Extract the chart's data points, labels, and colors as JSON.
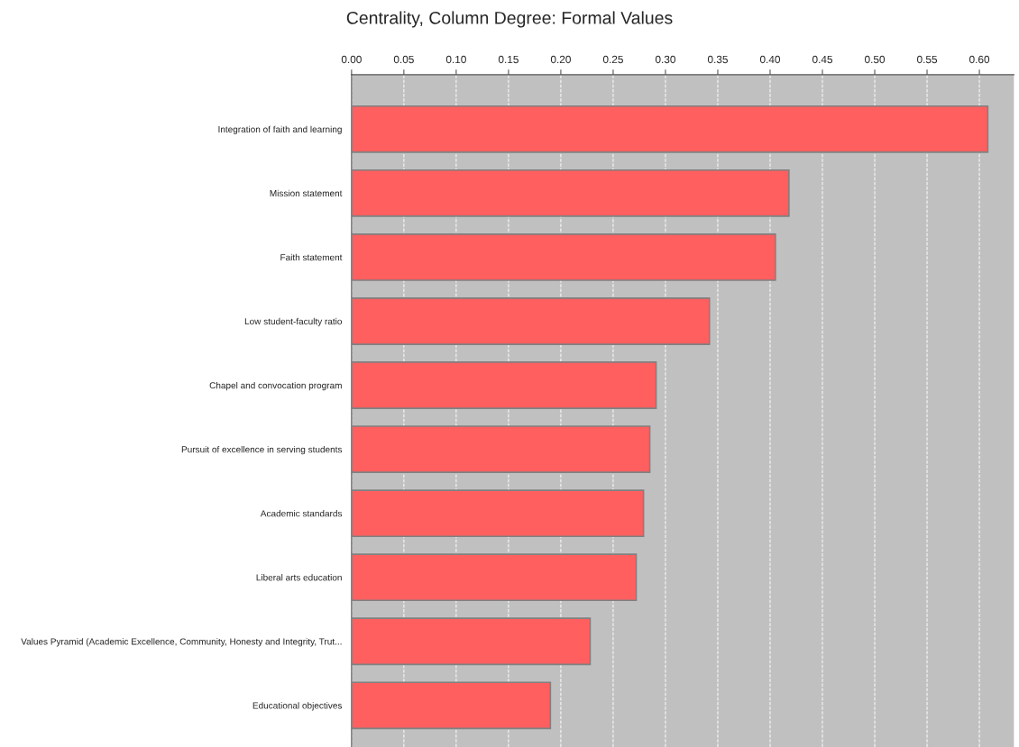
{
  "chart_data": {
    "type": "bar",
    "orientation": "horizontal",
    "title": "Centrality, Column Degree: Formal Values",
    "categories": [
      "Integration of faith and learning",
      "Mission statement",
      "Faith statement",
      "Low student-faculty ratio",
      "Chapel and convocation program",
      "Pursuit of excellence in serving students",
      "Academic standards",
      "Liberal arts education",
      "Values Pyramid (Academic Excellence, Community, Honesty and Integrity, Trut...",
      "Educational objectives"
    ],
    "values": [
      0.608,
      0.418,
      0.405,
      0.342,
      0.291,
      0.285,
      0.279,
      0.272,
      0.228,
      0.19
    ],
    "color": "#ff5f5f",
    "xlim": [
      0,
      0.633
    ],
    "xticks": [
      {
        "value": 0,
        "label": "0.00"
      },
      0.05,
      {
        "value": 0.1,
        "label": "0.10"
      },
      0.15,
      {
        "value": 0.2,
        "label": "0.20"
      },
      0.25,
      {
        "value": 0.3,
        "label": "0.30"
      },
      0.35,
      {
        "value": 0.4,
        "label": "0.40"
      },
      0.45,
      {
        "value": 0.5,
        "label": "0.50"
      },
      0.55,
      {
        "value": 0.6,
        "label": "0.60"
      }
    ],
    "grid": "x",
    "legend": false
  }
}
